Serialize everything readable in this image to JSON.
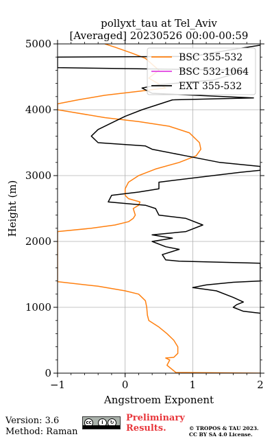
{
  "chart_data": {
    "type": "line",
    "title": "pollyxt_tau at Tel_Aviv",
    "subtitle": "[Averaged] 20230526 00:00-00:59",
    "xlabel": "Angstroem Exponent",
    "ylabel": "Height (m)",
    "xlim": [
      -1,
      2
    ],
    "ylim": [
      0,
      5000
    ],
    "xticks": [
      -1,
      0,
      1,
      2
    ],
    "yticks": [
      0,
      1000,
      2000,
      3000,
      4000,
      5000
    ],
    "grid": true,
    "legend_position": "top-right",
    "series": [
      {
        "name": "BSC 355-532",
        "color": "#ff7f0e",
        "points": [
          [
            2.0,
            0
          ],
          [
            0.75,
            10
          ],
          [
            0.62,
            120
          ],
          [
            0.66,
            200
          ],
          [
            0.6,
            230
          ],
          [
            0.72,
            240
          ],
          [
            0.78,
            300
          ],
          [
            0.78,
            400
          ],
          [
            0.72,
            500
          ],
          [
            0.62,
            600
          ],
          [
            0.5,
            700
          ],
          [
            0.35,
            800
          ],
          [
            0.33,
            880
          ],
          [
            0.32,
            1000
          ],
          [
            0.3,
            1100
          ],
          [
            0.2,
            1200
          ],
          [
            0.0,
            1250
          ],
          [
            -0.4,
            1320
          ],
          [
            -1.0,
            1390
          ],
          [
            -1.0,
            2150
          ],
          [
            -0.5,
            2200
          ],
          [
            -0.15,
            2250
          ],
          [
            0.05,
            2300
          ],
          [
            0.12,
            2350
          ],
          [
            0.15,
            2400
          ],
          [
            0.12,
            2500
          ],
          [
            0.2,
            2550
          ],
          [
            0.22,
            2600
          ],
          [
            0.05,
            2650
          ],
          [
            0.0,
            2700
          ],
          [
            0.0,
            2800
          ],
          [
            0.05,
            2900
          ],
          [
            0.2,
            3000
          ],
          [
            0.45,
            3100
          ],
          [
            0.8,
            3200
          ],
          [
            1.05,
            3300
          ],
          [
            1.12,
            3400
          ],
          [
            1.1,
            3500
          ],
          [
            0.95,
            3650
          ],
          [
            0.65,
            3750
          ],
          [
            0.2,
            3820
          ],
          [
            -0.3,
            3880
          ],
          [
            -1.0,
            4000
          ],
          [
            -1.0,
            4090
          ],
          [
            -0.7,
            4150
          ],
          [
            -0.3,
            4220
          ],
          [
            0.2,
            4280
          ],
          [
            0.6,
            4330
          ],
          [
            0.35,
            4480
          ],
          [
            0.5,
            4600
          ],
          [
            0.3,
            4780
          ],
          [
            0.1,
            4860
          ],
          [
            -0.15,
            4950
          ],
          [
            -0.3,
            5000
          ]
        ]
      },
      {
        "name": "BSC 532-1064",
        "color": "#e040e0",
        "points": []
      },
      {
        "name": "EXT 355-532",
        "color": "#000000",
        "points": [
          [
            2.0,
            910
          ],
          [
            1.75,
            940
          ],
          [
            1.6,
            1000
          ],
          [
            1.65,
            1040
          ],
          [
            1.75,
            1080
          ],
          [
            1.6,
            1150
          ],
          [
            1.35,
            1250
          ],
          [
            1.0,
            1300
          ],
          [
            1.2,
            1340
          ],
          [
            1.6,
            1380
          ],
          [
            2.0,
            1400
          ],
          [
            2.0,
            1670
          ],
          [
            1.6,
            1680
          ],
          [
            0.8,
            1700
          ],
          [
            0.6,
            1720
          ],
          [
            0.55,
            1800
          ],
          [
            0.8,
            1880
          ],
          [
            0.6,
            1920
          ],
          [
            0.4,
            2000
          ],
          [
            0.7,
            2050
          ],
          [
            0.4,
            2100
          ],
          [
            0.9,
            2150
          ],
          [
            1.15,
            2250
          ],
          [
            0.9,
            2350
          ],
          [
            0.5,
            2400
          ],
          [
            0.45,
            2500
          ],
          [
            0.3,
            2550
          ],
          [
            -0.25,
            2600
          ],
          [
            -0.2,
            2700
          ],
          [
            0.2,
            2750
          ],
          [
            0.5,
            2800
          ],
          [
            0.5,
            2900
          ],
          [
            1.7,
            3050
          ],
          [
            2.0,
            3080
          ],
          [
            2.0,
            3140
          ],
          [
            1.4,
            3200
          ],
          [
            0.9,
            3300
          ],
          [
            0.4,
            3400
          ],
          [
            0.3,
            3450
          ],
          [
            -0.4,
            3500
          ],
          [
            -0.5,
            3600
          ],
          [
            -0.4,
            3700
          ],
          [
            -0.2,
            3800
          ],
          [
            0.0,
            3900
          ],
          [
            0.25,
            4000
          ],
          [
            0.7,
            4150
          ],
          [
            1.9,
            4180
          ],
          [
            0.4,
            4250
          ],
          [
            0.25,
            4330
          ],
          [
            0.5,
            4380
          ],
          [
            1.3,
            4450
          ],
          [
            1.8,
            4600
          ],
          [
            -1.0,
            4640
          ],
          [
            -1.0,
            4800
          ],
          [
            1.0,
            4810
          ],
          [
            1.5,
            4900
          ],
          [
            2.0,
            4980
          ]
        ]
      }
    ]
  },
  "footer": {
    "version": "Version: 3.6",
    "method": "Method: Raman",
    "license_icon": "creative-commons-by-sa-icon",
    "preliminary_line1": "Preliminary",
    "preliminary_line2": "Results.",
    "copyright_line1": "© TROPOS & TAU 2023.",
    "copyright_line2": "CC BY SA 4.0 License."
  }
}
